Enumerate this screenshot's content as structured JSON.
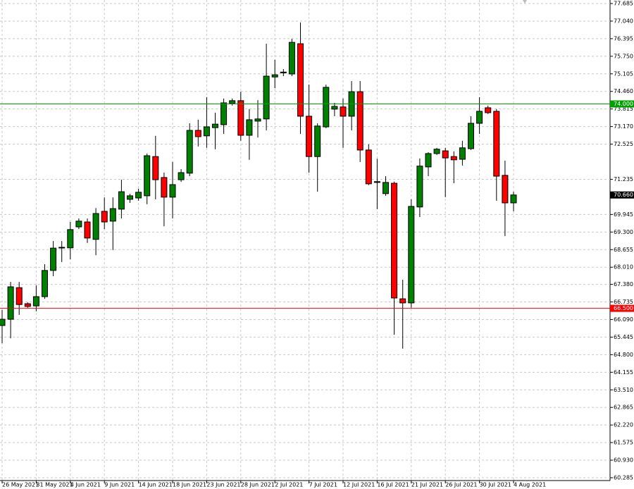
{
  "chart_data": {
    "type": "candlestick",
    "categories": [
      "26 May 2021",
      null,
      null,
      null,
      "31 May 2021",
      null,
      null,
      null,
      "4 Jun 2021",
      null,
      null,
      null,
      "9 Jun 2021",
      null,
      null,
      null,
      "14 Jun 2021",
      null,
      null,
      null,
      "18 Jun 2021",
      null,
      null,
      null,
      "23 Jun 2021",
      null,
      null,
      null,
      "28 Jun 2021",
      null,
      null,
      null,
      "2 Jul 2021",
      null,
      null,
      null,
      "7 Jul 2021",
      null,
      null,
      null,
      "12 Jul 2021",
      null,
      null,
      null,
      "16 Jul 2021",
      null,
      null,
      null,
      "21 Jul 2021",
      null,
      null,
      null,
      "26 Jul 2021",
      null,
      null,
      null,
      "30 Jul 2021",
      null,
      null,
      null,
      "4 Aug 2021"
    ],
    "open": [
      65.87,
      66.1,
      67.26,
      66.67,
      66.59,
      66.93,
      67.89,
      68.72,
      68.72,
      69.49,
      69.67,
      69.03,
      70.06,
      69.7,
      70.14,
      70.5,
      70.55,
      70.63,
      72.07,
      71.3,
      70.58,
      71.22,
      71.46,
      73.03,
      72.83,
      73.13,
      73.24,
      74.02,
      74.12,
      72.85,
      73.37,
      73.45,
      74.99,
      75.14,
      75.1,
      76.21,
      73.55,
      72.07,
      73.16,
      73.81,
      73.89,
      73.55,
      74.45,
      72.31,
      71.12,
      70.71,
      71.09,
      66.85,
      66.7,
      70.22,
      71.69,
      72.18,
      72.28,
      72.07,
      71.97,
      72.36,
      73.29,
      73.86,
      73.73,
      71.38,
      70.37
    ],
    "high": [
      66.44,
      67.47,
      67.47,
      66.72,
      67.34,
      68.12,
      68.97,
      68.97,
      69.67,
      69.8,
      69.8,
      70.18,
      70.57,
      70.57,
      71.22,
      70.7,
      70.89,
      72.18,
      72.83,
      71.48,
      71.87,
      71.61,
      73.29,
      73.42,
      74.25,
      73.68,
      74.2,
      74.2,
      74.45,
      73.81,
      74.14,
      76.21,
      75.62,
      75.28,
      76.39,
      76.99,
      74.71,
      73.29,
      74.71,
      74.04,
      74.2,
      74.84,
      74.84,
      72.52,
      71.99,
      71.35,
      71.15,
      67.55,
      70.5,
      72.0,
      72.23,
      72.39,
      72.39,
      72.26,
      72.65,
      73.55,
      74.25,
      73.94,
      73.81,
      71.92,
      70.78
    ],
    "low": [
      65.22,
      65.4,
      66.26,
      66.52,
      66.39,
      66.85,
      67.68,
      68.2,
      68.3,
      69.41,
      68.9,
      68.45,
      69.41,
      68.64,
      69.8,
      70.37,
      70.45,
      70.32,
      70.5,
      69.51,
      69.8,
      71.14,
      71.35,
      72.44,
      72.39,
      72.34,
      72.9,
      73.94,
      72.65,
      71.95,
      72.77,
      73.03,
      74.58,
      75.02,
      75.02,
      72.9,
      71.48,
      70.78,
      73.11,
      73.55,
      72.39,
      73.03,
      71.87,
      71.02,
      70.14,
      70.63,
      65.53,
      65.02,
      66.52,
      69.85,
      71.35,
      72.13,
      70.58,
      71.09,
      71.74,
      72.31,
      72.9,
      73.63,
      70.45,
      69.15,
      70.06
    ],
    "close": [
      66.1,
      67.29,
      66.64,
      66.57,
      66.93,
      67.89,
      68.71,
      68.74,
      69.39,
      69.7,
      69.08,
      69.98,
      69.67,
      70.16,
      70.78,
      70.63,
      70.76,
      72.1,
      71.22,
      70.58,
      71.04,
      71.48,
      73.03,
      72.8,
      73.16,
      73.26,
      74.04,
      74.12,
      72.85,
      73.42,
      73.45,
      75.02,
      75.07,
      75.17,
      76.26,
      73.55,
      72.07,
      73.19,
      74.61,
      73.91,
      73.55,
      74.45,
      72.31,
      71.07,
      71.15,
      71.12,
      66.88,
      66.7,
      70.24,
      71.72,
      72.18,
      72.34,
      72.02,
      71.95,
      72.39,
      73.29,
      73.73,
      73.68,
      71.35,
      70.37,
      70.66
    ],
    "up_color": "#008000",
    "down_color": "#ff0000",
    "ylim": [
      60.285,
      77.685
    ],
    "yticks": [
      {
        "value": 77.685,
        "label": "77.685"
      },
      {
        "value": 77.04,
        "label": "77.040"
      },
      {
        "value": 76.395,
        "label": "76.395"
      },
      {
        "value": 75.75,
        "label": "75.750"
      },
      {
        "value": 75.105,
        "label": "75.105"
      },
      {
        "value": 74.46,
        "label": "74.460"
      },
      {
        "value": 73.815,
        "label": "73.815"
      },
      {
        "value": 73.17,
        "label": "73.170"
      },
      {
        "value": 72.525,
        "label": "72.525"
      },
      {
        "value": 71.235,
        "label": "71.235"
      },
      {
        "value": 69.945,
        "label": "69.945"
      },
      {
        "value": 69.3,
        "label": "69.300"
      },
      {
        "value": 68.655,
        "label": "68.655"
      },
      {
        "value": 68.01,
        "label": "68.010"
      },
      {
        "value": 67.38,
        "label": "67.380"
      },
      {
        "value": 66.735,
        "label": "66.735"
      },
      {
        "value": 66.09,
        "label": "66.090"
      },
      {
        "value": 65.445,
        "label": "65.445"
      },
      {
        "value": 64.8,
        "label": "64.800"
      },
      {
        "value": 64.155,
        "label": "64.155"
      },
      {
        "value": 63.51,
        "label": "63.510"
      },
      {
        "value": 62.865,
        "label": "62.865"
      },
      {
        "value": 62.22,
        "label": "62.220"
      },
      {
        "value": 61.575,
        "label": "61.575"
      },
      {
        "value": 60.93,
        "label": "60.930"
      },
      {
        "value": 60.285,
        "label": "60.285"
      }
    ],
    "grid": true,
    "hlines": [
      {
        "value": 74.0,
        "label": "74.000",
        "color": "#00a000"
      },
      {
        "value": 66.5,
        "label": "66.500",
        "color": "#ff0000"
      }
    ],
    "price_label": {
      "value": 70.66,
      "label": "70.660",
      "color": "#000000"
    }
  }
}
